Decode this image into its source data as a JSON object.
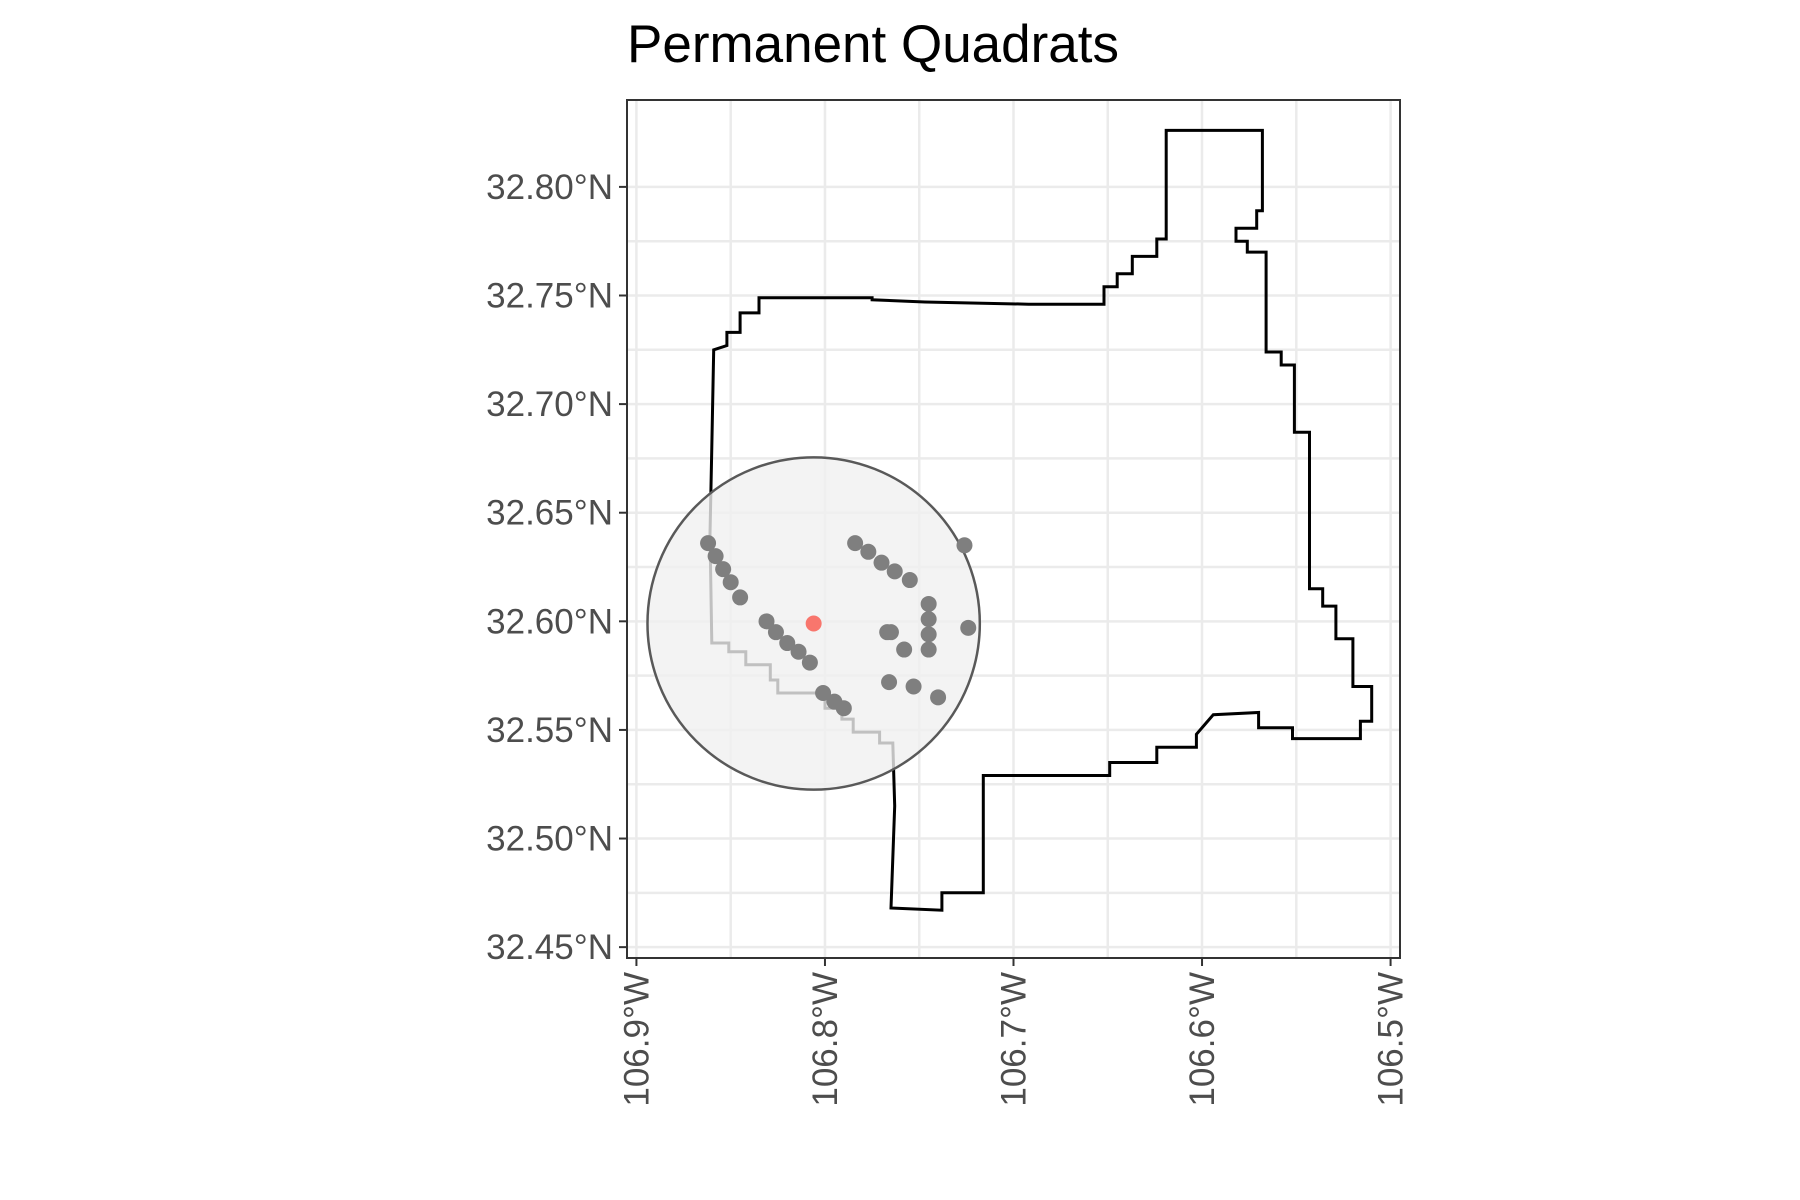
{
  "title": "Permanent Quadrats",
  "chart_data": {
    "type": "map",
    "title": "Permanent Quadrats",
    "xlabel": "",
    "ylabel": "",
    "x_label_rotation": "vertical",
    "grid": true,
    "xlim": [
      -106.905,
      -106.495
    ],
    "ylim": [
      32.445,
      32.84
    ],
    "x_ticks": [
      {
        "value": -106.9,
        "label": "106.9°W"
      },
      {
        "value": -106.8,
        "label": "106.8°W"
      },
      {
        "value": -106.7,
        "label": "106.7°W"
      },
      {
        "value": -106.6,
        "label": "106.6°W"
      },
      {
        "value": -106.5,
        "label": "106.5°W"
      }
    ],
    "y_ticks": [
      {
        "value": 32.8,
        "label": "32.80°N"
      },
      {
        "value": 32.75,
        "label": "32.75°N"
      },
      {
        "value": 32.7,
        "label": "32.70°N"
      },
      {
        "value": 32.65,
        "label": "32.65°N"
      },
      {
        "value": 32.6,
        "label": "32.60°N"
      },
      {
        "value": 32.55,
        "label": "32.55°N"
      },
      {
        "value": 32.5,
        "label": "32.50°N"
      },
      {
        "value": 32.45,
        "label": "32.45°N"
      }
    ],
    "boundary": [
      [
        -106.765,
        32.468
      ],
      [
        -106.738,
        32.467
      ],
      [
        -106.738,
        32.475
      ],
      [
        -106.716,
        32.475
      ],
      [
        -106.716,
        32.529
      ],
      [
        -106.665,
        32.529
      ],
      [
        -106.649,
        32.529
      ],
      [
        -106.649,
        32.535
      ],
      [
        -106.624,
        32.535
      ],
      [
        -106.624,
        32.542
      ],
      [
        -106.603,
        32.542
      ],
      [
        -106.603,
        32.548
      ],
      [
        -106.598,
        32.553
      ],
      [
        -106.594,
        32.557
      ],
      [
        -106.57,
        32.558
      ],
      [
        -106.57,
        32.551
      ],
      [
        -106.552,
        32.551
      ],
      [
        -106.552,
        32.546
      ],
      [
        -106.516,
        32.546
      ],
      [
        -106.516,
        32.554
      ],
      [
        -106.51,
        32.554
      ],
      [
        -106.51,
        32.57
      ],
      [
        -106.52,
        32.57
      ],
      [
        -106.52,
        32.592
      ],
      [
        -106.529,
        32.592
      ],
      [
        -106.529,
        32.607
      ],
      [
        -106.536,
        32.607
      ],
      [
        -106.536,
        32.615
      ],
      [
        -106.543,
        32.615
      ],
      [
        -106.543,
        32.687
      ],
      [
        -106.551,
        32.687
      ],
      [
        -106.551,
        32.718
      ],
      [
        -106.558,
        32.718
      ],
      [
        -106.558,
        32.724
      ],
      [
        -106.566,
        32.724
      ],
      [
        -106.566,
        32.77
      ],
      [
        -106.576,
        32.77
      ],
      [
        -106.576,
        32.775
      ],
      [
        -106.582,
        32.775
      ],
      [
        -106.582,
        32.781
      ],
      [
        -106.571,
        32.781
      ],
      [
        -106.571,
        32.789
      ],
      [
        -106.568,
        32.789
      ],
      [
        -106.568,
        32.826
      ],
      [
        -106.619,
        32.826
      ],
      [
        -106.619,
        32.776
      ],
      [
        -106.624,
        32.776
      ],
      [
        -106.624,
        32.768
      ],
      [
        -106.637,
        32.768
      ],
      [
        -106.637,
        32.76
      ],
      [
        -106.645,
        32.76
      ],
      [
        -106.645,
        32.754
      ],
      [
        -106.652,
        32.754
      ],
      [
        -106.652,
        32.746
      ],
      [
        -106.692,
        32.746
      ],
      [
        -106.747,
        32.747
      ],
      [
        -106.775,
        32.748
      ],
      [
        -106.775,
        32.749
      ],
      [
        -106.835,
        32.749
      ],
      [
        -106.835,
        32.742
      ],
      [
        -106.845,
        32.742
      ],
      [
        -106.845,
        32.733
      ],
      [
        -106.852,
        32.733
      ],
      [
        -106.852,
        32.727
      ],
      [
        -106.859,
        32.725
      ],
      [
        -106.86,
        32.68
      ],
      [
        -106.861,
        32.64
      ],
      [
        -106.86,
        32.59
      ],
      [
        -106.851,
        32.59
      ],
      [
        -106.851,
        32.586
      ],
      [
        -106.842,
        32.586
      ],
      [
        -106.842,
        32.58
      ],
      [
        -106.829,
        32.58
      ],
      [
        -106.829,
        32.573
      ],
      [
        -106.825,
        32.573
      ],
      [
        -106.825,
        32.567
      ],
      [
        -106.8,
        32.567
      ],
      [
        -106.8,
        32.56
      ],
      [
        -106.791,
        32.56
      ],
      [
        -106.791,
        32.555
      ],
      [
        -106.785,
        32.555
      ],
      [
        -106.785,
        32.549
      ],
      [
        -106.771,
        32.549
      ],
      [
        -106.771,
        32.544
      ],
      [
        -106.764,
        32.544
      ],
      [
        -106.763,
        32.515
      ],
      [
        -106.765,
        32.468
      ]
    ],
    "center": {
      "lon": -106.806,
      "lat": 32.599
    },
    "buffer_radius_deg_lat": 0.0765,
    "points": [
      {
        "lon": -106.862,
        "lat": 32.636
      },
      {
        "lon": -106.858,
        "lat": 32.63
      },
      {
        "lon": -106.854,
        "lat": 32.624
      },
      {
        "lon": -106.85,
        "lat": 32.618
      },
      {
        "lon": -106.845,
        "lat": 32.611
      },
      {
        "lon": -106.831,
        "lat": 32.6
      },
      {
        "lon": -106.826,
        "lat": 32.595
      },
      {
        "lon": -106.82,
        "lat": 32.59
      },
      {
        "lon": -106.814,
        "lat": 32.586
      },
      {
        "lon": -106.808,
        "lat": 32.581
      },
      {
        "lon": -106.801,
        "lat": 32.567
      },
      {
        "lon": -106.795,
        "lat": 32.563
      },
      {
        "lon": -106.79,
        "lat": 32.56
      },
      {
        "lon": -106.784,
        "lat": 32.636
      },
      {
        "lon": -106.777,
        "lat": 32.632
      },
      {
        "lon": -106.77,
        "lat": 32.627
      },
      {
        "lon": -106.763,
        "lat": 32.623
      },
      {
        "lon": -106.755,
        "lat": 32.619
      },
      {
        "lon": -106.745,
        "lat": 32.608
      },
      {
        "lon": -106.745,
        "lat": 32.601
      },
      {
        "lon": -106.745,
        "lat": 32.594
      },
      {
        "lon": -106.745,
        "lat": 32.587
      },
      {
        "lon": -106.758,
        "lat": 32.587
      },
      {
        "lon": -106.767,
        "lat": 32.595
      },
      {
        "lon": -106.765,
        "lat": 32.595
      },
      {
        "lon": -106.726,
        "lat": 32.635
      },
      {
        "lon": -106.724,
        "lat": 32.597
      },
      {
        "lon": -106.766,
        "lat": 32.572
      },
      {
        "lon": -106.753,
        "lat": 32.57
      },
      {
        "lon": -106.74,
        "lat": 32.565
      }
    ],
    "colors": {
      "points": "#7f7f7f",
      "center": "#f8766d",
      "buffer_fill": "#f0f0f0",
      "buffer_stroke": "#595959",
      "boundary": "#000000",
      "grid": "#ebebeb",
      "panel_border": "#333333",
      "tick_text": "#4d4d4d"
    }
  }
}
